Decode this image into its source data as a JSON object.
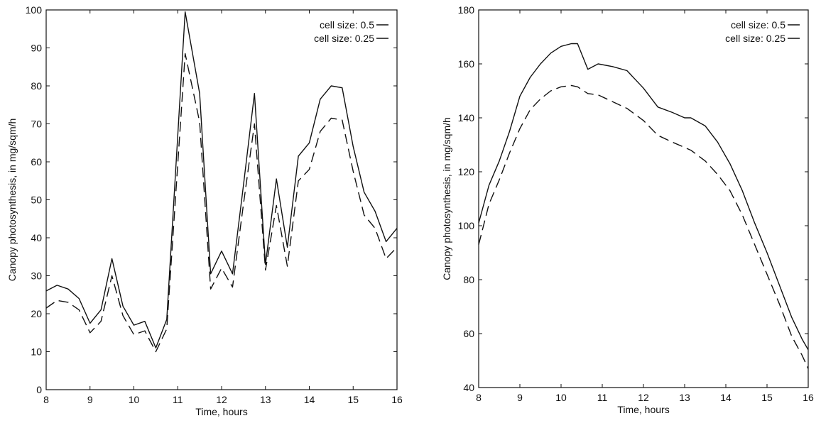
{
  "chart_data": [
    {
      "type": "line",
      "title": "",
      "xlabel": "Time, hours",
      "ylabel": "Canopy photosynthesis, in mg/sqm/h",
      "xlim": [
        8,
        16
      ],
      "ylim": [
        0,
        100
      ],
      "xticks": [
        8,
        9,
        10,
        11,
        12,
        13,
        14,
        15,
        16
      ],
      "yticks": [
        0,
        10,
        20,
        30,
        40,
        50,
        60,
        70,
        80,
        90,
        100
      ],
      "legend_position": "top-right",
      "grid": false,
      "series": [
        {
          "name": "cell size:  0.5",
          "style": "solid",
          "x": [
            8,
            8.25,
            8.5,
            8.75,
            9,
            9.25,
            9.5,
            9.75,
            10,
            10.25,
            10.5,
            10.75,
            11.17,
            11.5,
            11.75,
            12,
            12.25,
            12.5,
            12.75,
            13,
            13.25,
            13.5,
            13.75,
            14,
            14.25,
            14.5,
            14.75,
            15,
            15.25,
            15.5,
            15.75,
            16
          ],
          "y": [
            26,
            27.5,
            26.5,
            24,
            17.5,
            21,
            34.5,
            22,
            17,
            18,
            11,
            18.5,
            99.5,
            78,
            30.5,
            36.5,
            30.5,
            54,
            78,
            33,
            55.5,
            37.5,
            61.5,
            65,
            76.5,
            80,
            79.5,
            64,
            52,
            47,
            39,
            42.5
          ]
        },
        {
          "name": "cell size: 0.25",
          "style": "dashed",
          "x": [
            8,
            8.25,
            8.5,
            8.75,
            9,
            9.25,
            9.5,
            9.75,
            10,
            10.25,
            10.5,
            10.75,
            11.17,
            11.5,
            11.75,
            12,
            12.25,
            12.5,
            12.75,
            13,
            13.25,
            13.5,
            13.75,
            14,
            14.25,
            14.5,
            14.75,
            15,
            15.25,
            15.5,
            15.75,
            16
          ],
          "y": [
            21.5,
            23.5,
            23,
            21,
            15,
            18,
            30,
            19.5,
            14.5,
            15.5,
            10,
            16,
            88.5,
            70.5,
            26.5,
            32,
            27,
            49,
            70,
            31.5,
            48.5,
            32.5,
            55,
            58,
            68,
            71.5,
            71,
            57.5,
            46,
            42.5,
            34.5,
            37.5
          ]
        }
      ]
    },
    {
      "type": "line",
      "title": "",
      "xlabel": "Time, hours",
      "ylabel": "Canopy photosynthesis, in mg/sqm/h",
      "xlim": [
        8,
        16
      ],
      "ylim": [
        40,
        180
      ],
      "xticks": [
        8,
        9,
        10,
        11,
        12,
        13,
        14,
        15,
        16
      ],
      "yticks": [
        40,
        60,
        80,
        100,
        120,
        140,
        160,
        180
      ],
      "legend_position": "top-right",
      "grid": false,
      "series": [
        {
          "name": "cell size:  0.5",
          "style": "solid",
          "x": [
            8,
            8.25,
            8.5,
            8.75,
            9,
            9.25,
            9.5,
            9.75,
            10,
            10.25,
            10.4,
            10.65,
            10.9,
            11.25,
            11.6,
            12,
            12.35,
            12.7,
            13,
            13.15,
            13.5,
            13.8,
            14.1,
            14.4,
            14.7,
            15,
            15.3,
            15.6,
            15.85,
            16
          ],
          "y": [
            101,
            115,
            124,
            135,
            148,
            155,
            160,
            164,
            166.5,
            167.5,
            167.5,
            158,
            160,
            159,
            157.5,
            151,
            144,
            142,
            140,
            140,
            137,
            131,
            123,
            113,
            101,
            90,
            78,
            66,
            58,
            54
          ]
        },
        {
          "name": "cell size: 0.25",
          "style": "dashed",
          "x": [
            8,
            8.25,
            8.5,
            8.75,
            9,
            9.25,
            9.5,
            9.75,
            10,
            10.25,
            10.4,
            10.65,
            10.9,
            11.25,
            11.6,
            12,
            12.35,
            12.7,
            13,
            13.15,
            13.5,
            13.8,
            14.1,
            14.4,
            14.7,
            15,
            15.3,
            15.6,
            15.85,
            16
          ],
          "y": [
            93,
            108,
            117,
            127,
            136,
            143,
            147,
            150,
            151.5,
            152,
            151.5,
            149,
            148.5,
            146,
            143.5,
            139,
            133.5,
            131,
            129,
            128,
            124,
            119,
            113,
            104,
            93,
            82,
            71,
            59,
            52,
            47
          ]
        }
      ]
    }
  ]
}
